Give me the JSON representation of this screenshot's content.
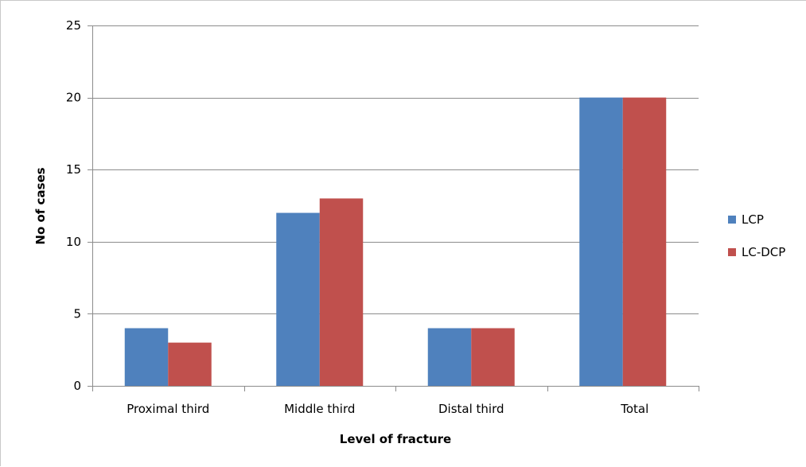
{
  "chart_data": {
    "type": "bar",
    "title": "",
    "xlabel": "Level of fracture",
    "ylabel": "No of cases",
    "categories": [
      "Proximal third",
      "Middle third",
      "Distal third",
      "Total"
    ],
    "series": [
      {
        "name": "LCP",
        "values": [
          4,
          12,
          4,
          20
        ],
        "color": "#4f81bd"
      },
      {
        "name": "LC-DCP",
        "values": [
          3,
          13,
          4,
          20
        ],
        "color": "#c0504d"
      }
    ],
    "ylim": [
      0,
      25
    ],
    "yticks": [
      0,
      5,
      10,
      15,
      20,
      25
    ],
    "grid": true,
    "legend_position": "right"
  }
}
